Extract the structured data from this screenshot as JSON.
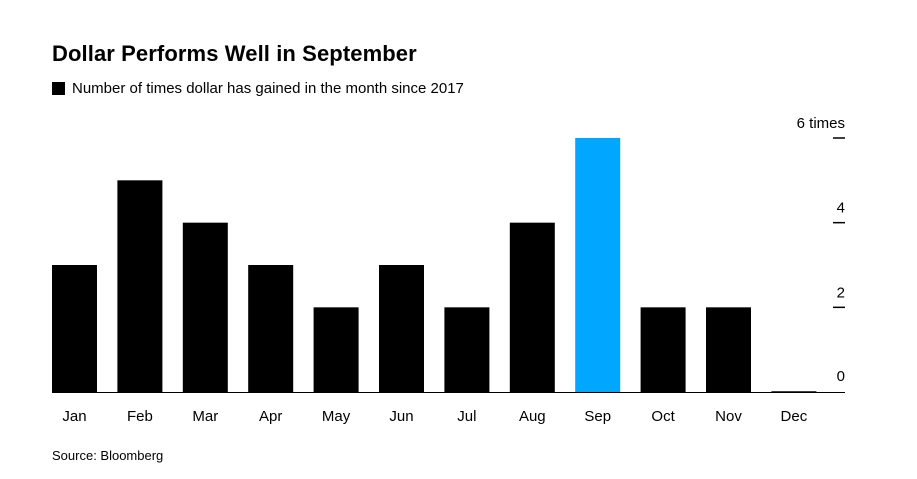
{
  "title": "Dollar Performs Well in September",
  "legend_label": "Number of times dollar has gained in the month since 2017",
  "source": "Source: Bloomberg",
  "colors": {
    "bar_default": "#000000",
    "bar_highlight": "#00a6ff",
    "axis": "#000000"
  },
  "chart_data": {
    "type": "bar",
    "title": "Dollar Performs Well in September",
    "categories": [
      "Jan",
      "Feb",
      "Mar",
      "Apr",
      "May",
      "Jun",
      "Jul",
      "Aug",
      "Sep",
      "Oct",
      "Nov",
      "Dec"
    ],
    "series": [
      {
        "name": "Number of times dollar has gained in the month since 2017",
        "values": [
          3,
          5,
          4,
          3,
          2,
          3,
          2,
          4,
          6,
          2,
          2,
          0
        ]
      }
    ],
    "highlight_category": "Sep",
    "ylim": [
      0,
      6
    ],
    "yticks": [
      0,
      2,
      4,
      6
    ],
    "ytick_labels": [
      "0",
      "2",
      "4",
      "6 times"
    ],
    "y_axis_side": "right",
    "grid": false,
    "legend": "top-left"
  }
}
